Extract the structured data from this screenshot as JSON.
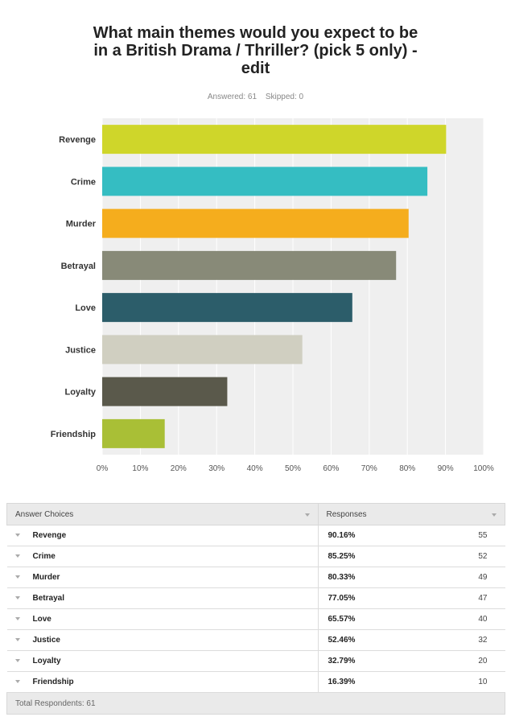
{
  "title_lines": [
    "What main themes would you expect to be",
    "in a British Drama / Thriller? (pick 5 only) -",
    "edit"
  ],
  "answered_label": "Answered: 61",
  "skipped_label": "Skipped: 0",
  "chart_data": {
    "type": "bar",
    "orientation": "horizontal",
    "categories": [
      "Revenge",
      "Crime",
      "Murder",
      "Betrayal",
      "Love",
      "Justice",
      "Loyalty",
      "Friendship"
    ],
    "values": [
      90.16,
      85.25,
      80.33,
      77.05,
      65.57,
      52.46,
      32.79,
      16.39
    ],
    "colors": [
      "#cfd62a",
      "#35bdc2",
      "#f5ad1d",
      "#888a78",
      "#2c5d6a",
      "#d0cfc1",
      "#5a594b",
      "#a9bf36"
    ],
    "xlim": [
      0,
      100
    ],
    "xticks": [
      "0%",
      "10%",
      "20%",
      "30%",
      "40%",
      "50%",
      "60%",
      "70%",
      "80%",
      "90%",
      "100%"
    ],
    "grid": true,
    "plot_background": "#efefef"
  },
  "table": {
    "headers": [
      "Answer Choices",
      "Responses"
    ],
    "rows": [
      {
        "choice": "Revenge",
        "pct": "90.16%",
        "count": "55"
      },
      {
        "choice": "Crime",
        "pct": "85.25%",
        "count": "52"
      },
      {
        "choice": "Murder",
        "pct": "80.33%",
        "count": "49"
      },
      {
        "choice": "Betrayal",
        "pct": "77.05%",
        "count": "47"
      },
      {
        "choice": "Love",
        "pct": "65.57%",
        "count": "40"
      },
      {
        "choice": "Justice",
        "pct": "52.46%",
        "count": "32"
      },
      {
        "choice": "Loyalty",
        "pct": "32.79%",
        "count": "20"
      },
      {
        "choice": "Friendship",
        "pct": "16.39%",
        "count": "10"
      }
    ],
    "footer": "Total Respondents: 61"
  }
}
